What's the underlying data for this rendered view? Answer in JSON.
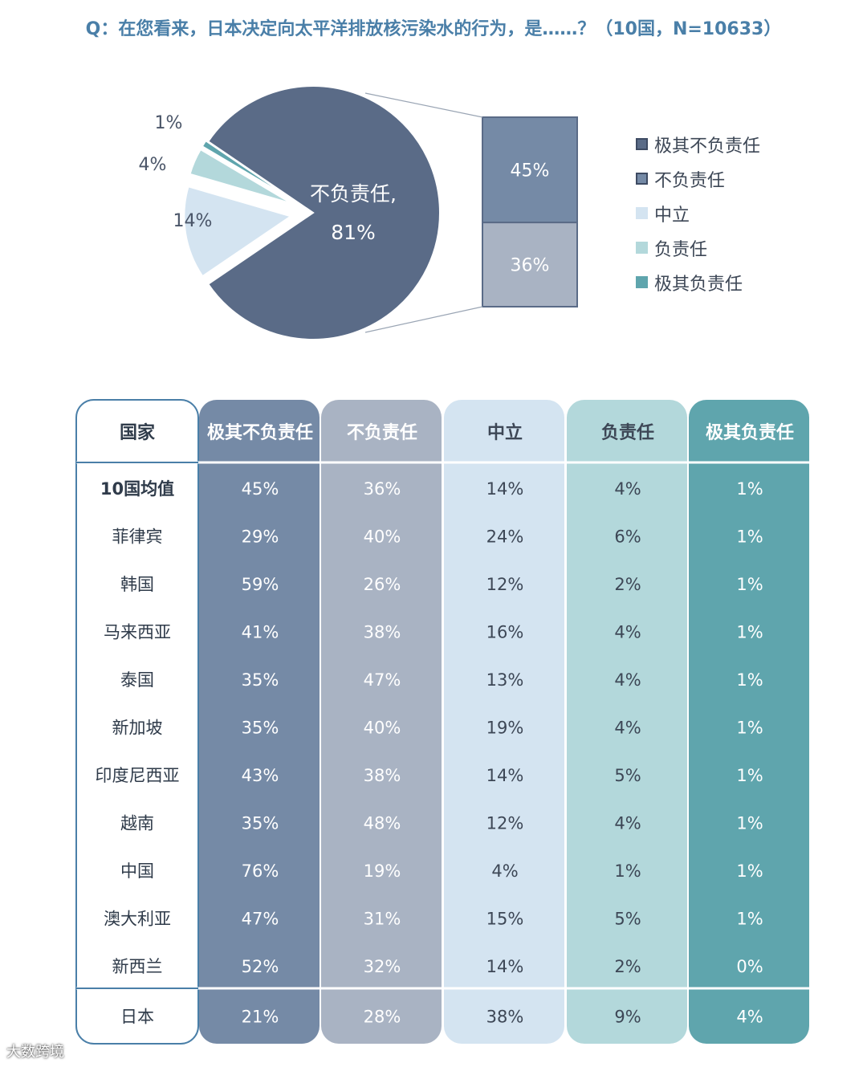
{
  "title": "Q：在您看来，日本决定向太平洋排放核污染水的行为，是……？（10国，N=10633）",
  "footer": "大数跨境",
  "colors": {
    "very_irresponsible": "#758aa6",
    "irresponsible": "#a9b3c3",
    "neutral": "#d4e4f1",
    "responsible": "#b3d8db",
    "very_responsible": "#5fa5ad",
    "pie_main": "#5a6b87",
    "header_text": "#ffffff",
    "country_border": "#4a7fa8"
  },
  "chart_data": [
    {
      "type": "pie",
      "title": "",
      "slices": [
        {
          "label": "不负责任",
          "value": 81,
          "label_text": "81%"
        },
        {
          "label": "中立",
          "value": 14,
          "label_text": "14%"
        },
        {
          "label": "负责任",
          "value": 4,
          "label_text": "4%"
        },
        {
          "label": "极其负责任",
          "value": 1,
          "label_text": "1%"
        }
      ],
      "center_label_line1": "不负责任,",
      "center_label_line2": "81%",
      "breakdown": [
        {
          "label": "极其不负责任",
          "value": 45,
          "label_text": "45%"
        },
        {
          "label": "不负责任",
          "value": 36,
          "label_text": "36%"
        }
      ],
      "legend": [
        "极其不负责任",
        "不负责任",
        "中立",
        "负责任",
        "极其负责任"
      ],
      "legend_placement": "right"
    },
    {
      "type": "table",
      "columns": [
        "国家",
        "极其不负责任",
        "不负责任",
        "中立",
        "负责任",
        "极其负责任"
      ],
      "rows": [
        {
          "country": "10国均值",
          "bold": true,
          "values": [
            "45%",
            "36%",
            "14%",
            "4%",
            "1%"
          ]
        },
        {
          "country": "菲律宾",
          "values": [
            "29%",
            "40%",
            "24%",
            "6%",
            "1%"
          ]
        },
        {
          "country": "韩国",
          "values": [
            "59%",
            "26%",
            "12%",
            "2%",
            "1%"
          ]
        },
        {
          "country": "马来西亚",
          "values": [
            "41%",
            "38%",
            "16%",
            "4%",
            "1%"
          ]
        },
        {
          "country": "泰国",
          "values": [
            "35%",
            "47%",
            "13%",
            "4%",
            "1%"
          ]
        },
        {
          "country": "新加坡",
          "values": [
            "35%",
            "40%",
            "19%",
            "4%",
            "1%"
          ]
        },
        {
          "country": "印度尼西亚",
          "values": [
            "43%",
            "38%",
            "14%",
            "5%",
            "1%"
          ]
        },
        {
          "country": "越南",
          "values": [
            "35%",
            "48%",
            "12%",
            "4%",
            "1%"
          ]
        },
        {
          "country": "中国",
          "values": [
            "76%",
            "19%",
            "4%",
            "1%",
            "1%"
          ]
        },
        {
          "country": "澳大利亚",
          "values": [
            "47%",
            "31%",
            "15%",
            "5%",
            "1%"
          ]
        },
        {
          "country": "新西兰",
          "values": [
            "52%",
            "32%",
            "14%",
            "2%",
            "0%"
          ]
        },
        {
          "country": "日本",
          "values": [
            "21%",
            "28%",
            "38%",
            "9%",
            "4%"
          ]
        }
      ]
    }
  ]
}
